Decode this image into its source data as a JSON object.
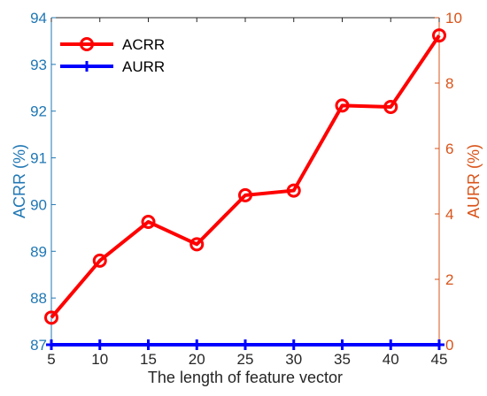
{
  "chart_data": {
    "type": "line",
    "xlabel": "The length of feature vector",
    "ylabel_left": "ACRR (%)",
    "ylabel_right": "AURR (%)",
    "x": [
      5,
      10,
      15,
      20,
      25,
      30,
      35,
      40,
      45
    ],
    "xlim": [
      5,
      45
    ],
    "ylim_left": [
      87,
      94
    ],
    "ylim_right": [
      0,
      10
    ],
    "x_ticks": [
      "5",
      "10",
      "15",
      "20",
      "25",
      "30",
      "35",
      "40",
      "45"
    ],
    "y_left_ticks": [
      "87",
      "88",
      "89",
      "90",
      "91",
      "92",
      "93",
      "94"
    ],
    "y_right_ticks": [
      "0",
      "2",
      "4",
      "6",
      "8",
      "10"
    ],
    "grid": false,
    "legend_position": "top-left",
    "series": [
      {
        "name": "ACRR",
        "axis": "left",
        "color": "#ff0000",
        "marker": "circle",
        "values": [
          87.58,
          88.8,
          89.63,
          89.15,
          90.2,
          90.3,
          92.12,
          92.09,
          93.62
        ]
      },
      {
        "name": "AURR",
        "axis": "right",
        "color": "#0000ff",
        "marker": "plus",
        "values": [
          0,
          0,
          0,
          0,
          0,
          0,
          0,
          0,
          0
        ]
      }
    ],
    "colors": {
      "left_axis": "#1f77b4",
      "right_axis": "#d95319",
      "x_axis": "#262626"
    }
  }
}
